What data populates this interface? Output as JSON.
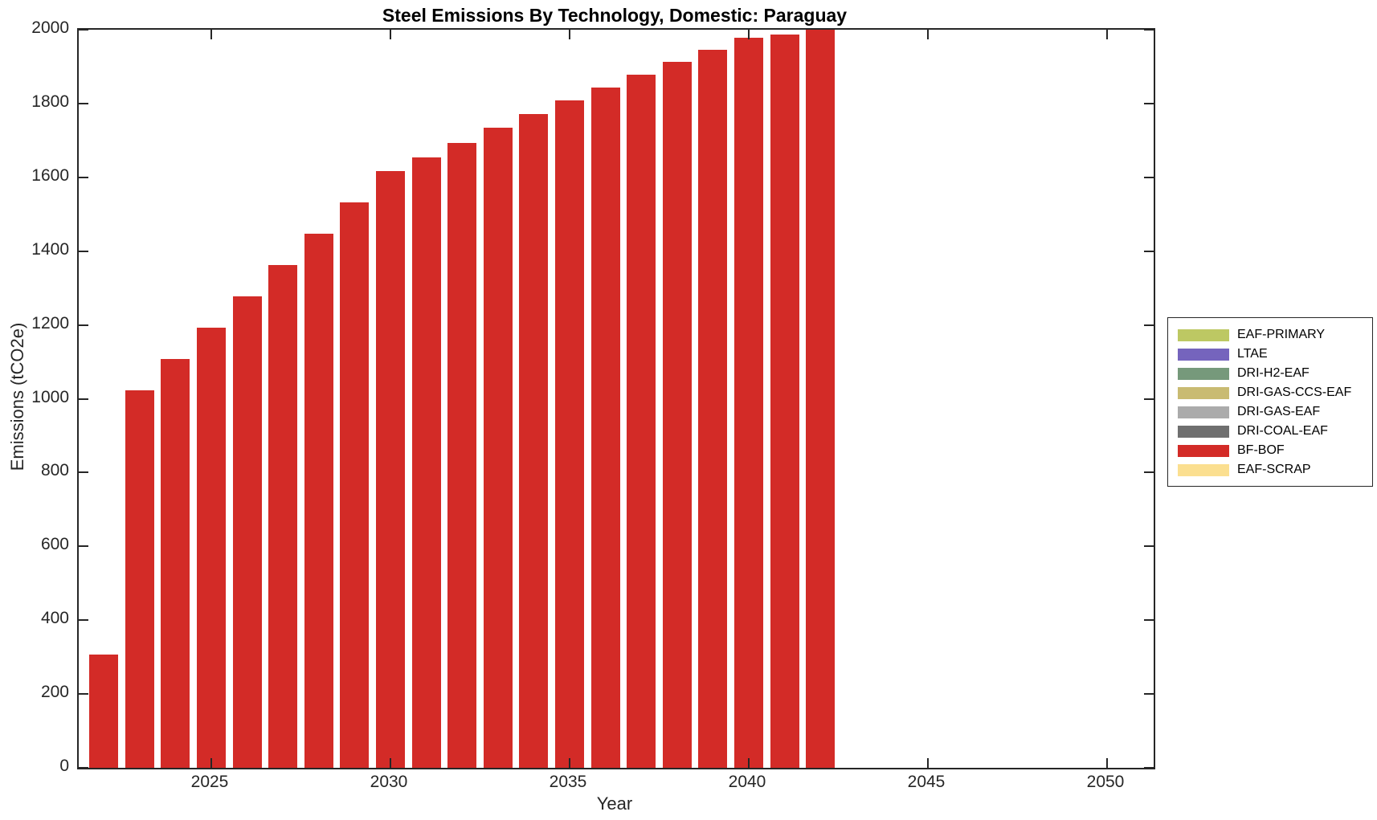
{
  "chart_data": {
    "type": "bar",
    "title": "Steel Emissions By Technology, Domestic: Paraguay",
    "xlabel": "Year",
    "ylabel": "Emissions (tCO2e)",
    "xlim": [
      2021.3,
      2051.3
    ],
    "ylim": [
      0,
      2000
    ],
    "xticks": [
      2025,
      2030,
      2035,
      2040,
      2045,
      2050
    ],
    "yticks": [
      0,
      200,
      400,
      600,
      800,
      1000,
      1200,
      1400,
      1600,
      1800,
      2000
    ],
    "grid": false,
    "bar_color": "#d32b27",
    "series": [
      {
        "name": "BF-BOF",
        "color": "#d32b27",
        "x": [
          2022,
          2023,
          2024,
          2025,
          2026,
          2027,
          2028,
          2029,
          2030,
          2031,
          2032,
          2033,
          2034,
          2035,
          2036,
          2037,
          2038,
          2039,
          2040,
          2041,
          2042
        ],
        "values": [
          307,
          1022,
          1108,
          1193,
          1278,
          1363,
          1448,
          1533,
          1617,
          1655,
          1693,
          1735,
          1772,
          1809,
          1843,
          1878,
          1913,
          1945,
          1978,
          1988,
          2000
        ]
      }
    ],
    "legend": {
      "position": "right-outside",
      "entries": [
        {
          "label": "EAF-PRIMARY",
          "color": "#bdc863"
        },
        {
          "label": "LTAE",
          "color": "#7564bd"
        },
        {
          "label": "DRI-H2-EAF",
          "color": "#76997b"
        },
        {
          "label": "DRI-GAS-CCS-EAF",
          "color": "#c9bb72"
        },
        {
          "label": "DRI-GAS-EAF",
          "color": "#ababab"
        },
        {
          "label": "DRI-COAL-EAF",
          "color": "#6f6f6f"
        },
        {
          "label": "BF-BOF",
          "color": "#d32b27"
        },
        {
          "label": "EAF-SCRAP",
          "color": "#fbdf90"
        }
      ]
    }
  }
}
